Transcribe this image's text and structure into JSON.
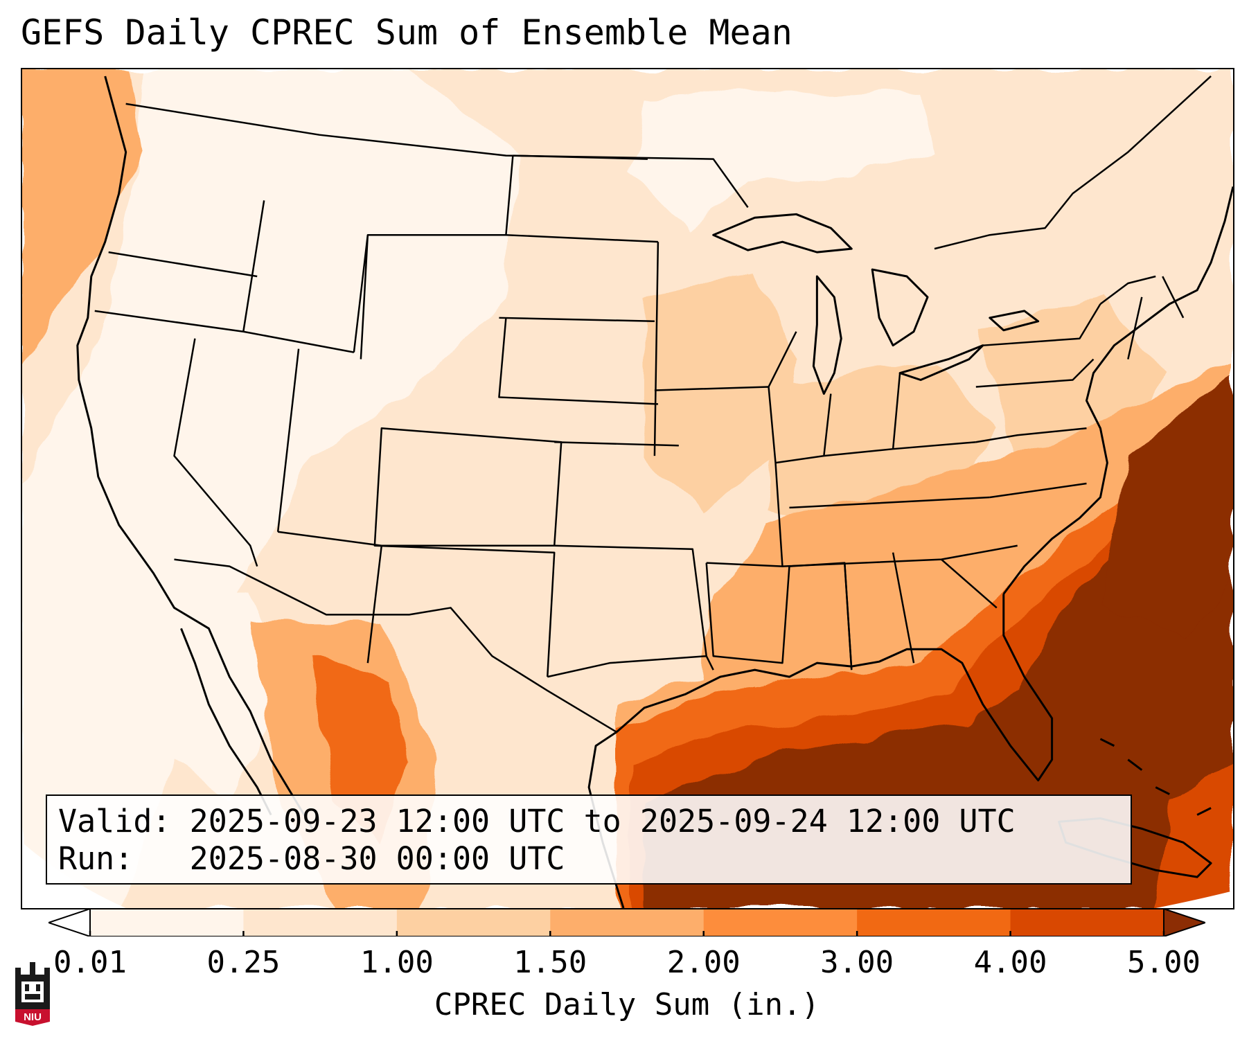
{
  "title": "GEFS Daily CPREC Sum of Ensemble Mean",
  "info": {
    "valid_line": "Valid: 2025-09-23 12:00 UTC to 2025-09-24 12:00 UTC",
    "run_line": "Run:   2025-08-30 00:00 UTC"
  },
  "colorbar": {
    "label": "CPREC Daily Sum (in.)",
    "ticks": [
      "0.01",
      "0.25",
      "1.00",
      "1.50",
      "2.00",
      "3.00",
      "4.00",
      "5.00"
    ],
    "colors": [
      "#fff5eb",
      "#fee6ce",
      "#fdd0a2",
      "#fdae6b",
      "#fd8d3c",
      "#f16913",
      "#d94801",
      "#8c2d04"
    ],
    "extend": "both"
  },
  "logo": {
    "name": "NIU"
  },
  "map": {
    "projection": "Lambert Conformal (CONUS)",
    "colors": {
      "land_low": "#fff5eb",
      "outline": "#000000"
    }
  }
}
